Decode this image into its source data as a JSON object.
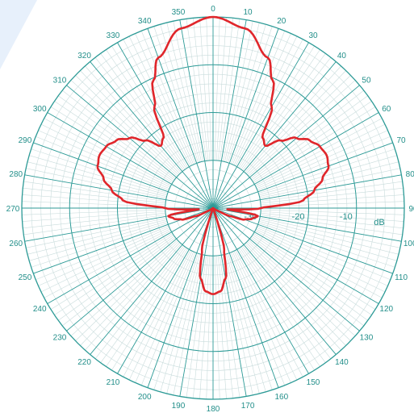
{
  "colors": {
    "background": "#ffffff",
    "backdrop_accent": "#e7f0fb",
    "grid_major": "#2c9a96",
    "grid_minor": "#c9dcdc",
    "label": "#238f8a",
    "trace": "#e0262b"
  },
  "chart_data": {
    "type": "polar-line",
    "title": "",
    "angle_unit": "degrees",
    "angle_zero": "top",
    "angle_direction": "clockwise",
    "angle_tick_step": 10,
    "angle_ticks": [
      "0",
      "10",
      "20",
      "30",
      "40",
      "50",
      "60",
      "70",
      "80",
      "90",
      "100",
      "110",
      "120",
      "130",
      "140",
      "150",
      "160",
      "170",
      "180",
      "190",
      "200",
      "210",
      "220",
      "230",
      "240",
      "250",
      "260",
      "270",
      "280",
      "290",
      "300",
      "310",
      "320",
      "330",
      "340",
      "350"
    ],
    "radial_unit": "dB",
    "radial_range": [
      -40,
      0
    ],
    "radial_rings": [
      -30,
      -20,
      -10,
      0
    ],
    "radial_tick_labels": [
      "-30",
      "-20",
      "-10"
    ],
    "radial_unit_label": "dB",
    "grid": true,
    "series": [
      {
        "angle_deg": [
          0,
          10,
          20,
          25,
          30,
          35,
          40,
          45,
          50,
          55,
          60,
          65,
          70,
          75,
          80,
          85,
          90,
          95,
          100,
          105,
          110,
          115,
          120,
          125,
          130,
          135,
          140,
          145,
          150,
          155,
          160,
          165,
          170,
          175,
          180,
          185,
          190,
          195,
          200,
          205,
          210,
          215,
          220,
          225,
          230,
          235,
          240,
          245,
          250,
          255,
          260,
          265,
          270,
          275,
          280,
          285,
          290,
          295,
          300,
          305,
          310,
          315,
          320,
          325,
          330,
          335,
          340,
          350
        ],
        "value_db": [
          0,
          -1.8,
          -6.5,
          -10.5,
          -15.5,
          -22,
          -23,
          -20,
          -17.2,
          -15.3,
          -14.2,
          -13.8,
          -14.3,
          -16.3,
          -18.5,
          -21,
          -30,
          -37,
          -30.5,
          -31.5,
          -33,
          -36,
          -39,
          -40,
          -40,
          -40,
          -40,
          -40,
          -40,
          -40,
          -40,
          -31,
          -25,
          -22.5,
          -22,
          -22.5,
          -25,
          -31,
          -40,
          -40,
          -40,
          -40,
          -40,
          -40,
          -40,
          -40,
          -39,
          -36,
          -33,
          -31.5,
          -30.5,
          -37,
          -30,
          -21,
          -18.5,
          -16.3,
          -14.3,
          -13.8,
          -14.2,
          -15.3,
          -17.2,
          -20,
          -23,
          -22,
          -15.5,
          -10.5,
          -6.5,
          -1.8
        ]
      }
    ]
  }
}
